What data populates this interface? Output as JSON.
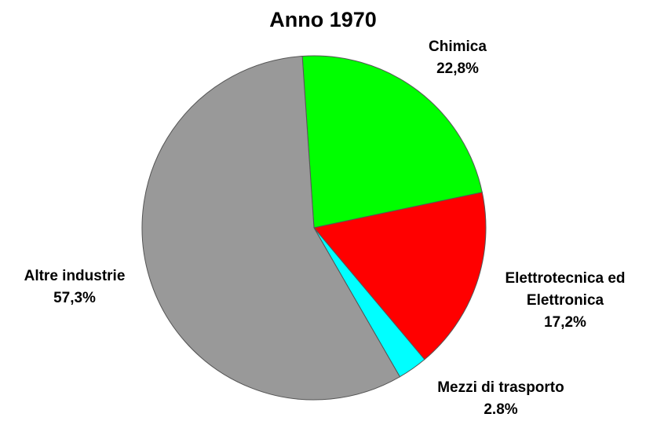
{
  "chart_data": {
    "type": "pie",
    "title": "Anno 1970",
    "categories": [
      "Chimica",
      "Elettrotecnica ed Elettronica",
      "Mezzi di trasporto",
      "Altre industrie"
    ],
    "values": [
      22.8,
      17.2,
      2.8,
      57.3
    ],
    "value_labels": [
      "22,8%",
      "17,2%",
      "2.8%",
      "57,3%"
    ],
    "colors": [
      "#00ff00",
      "#ff0000",
      "#00ffff",
      "#999999"
    ]
  }
}
